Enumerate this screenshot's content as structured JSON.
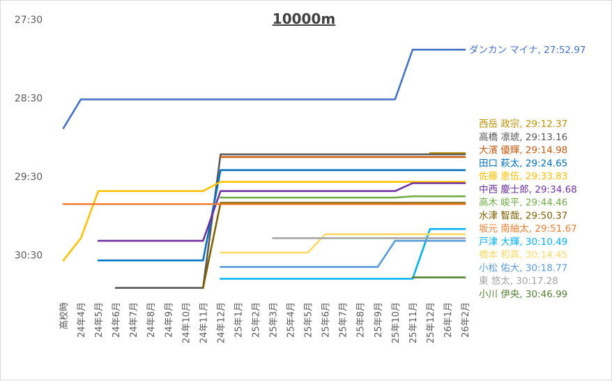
{
  "chart_data": {
    "type": "line",
    "title": "10000m",
    "xlabel": "",
    "ylabel": "",
    "y_axis_reversed": true,
    "y_unit": "seconds",
    "ylim": [
      1650,
      1860
    ],
    "ytick_values": [
      1650,
      1710,
      1770,
      1830
    ],
    "ytick_labels": [
      "27:30",
      "28:30",
      "29:30",
      "30:30"
    ],
    "categories": [
      "高校時",
      "24年4月",
      "24年5月",
      "24年6月",
      "24年7月",
      "24年8月",
      "24年9月",
      "24年10月",
      "24年11月",
      "24年12月",
      "25年1月",
      "25年2月",
      "25年3月",
      "25年4月",
      "25年5月",
      "25年6月",
      "25年7月",
      "25年8月",
      "25年9月",
      "25年10月",
      "25年11月",
      "25年12月",
      "26年1月",
      "26年2月"
    ],
    "series": [
      {
        "name": "ダンカン マイナ",
        "label": "ダンカン マイナ, 27:52.97",
        "color": "#4472c4",
        "values": [
          1733,
          1711,
          1711,
          1711,
          1711,
          1711,
          1711,
          1711,
          1711,
          1711,
          1711,
          1711,
          1711,
          1711,
          1711,
          1711,
          1711,
          1711,
          1711,
          1711,
          1673,
          1673,
          1673,
          1673
        ]
      },
      {
        "name": "西岳 政宗",
        "label": "西岳 政宗, 29:12.37",
        "color": "#bf9000",
        "values": [
          null,
          null,
          null,
          null,
          null,
          null,
          null,
          null,
          null,
          null,
          null,
          null,
          null,
          null,
          null,
          null,
          null,
          null,
          null,
          null,
          null,
          1752,
          1752,
          1752
        ]
      },
      {
        "name": "高橋 凛琥",
        "label": "高橋 凛琥, 29:13.16",
        "color": "#595959",
        "values": [
          null,
          null,
          null,
          1855,
          1855,
          1855,
          1855,
          1855,
          1855,
          1753,
          1753,
          1753,
          1753,
          1753,
          1753,
          1753,
          1753,
          1753,
          1753,
          1753,
          1753,
          1753,
          1753,
          1753
        ]
      },
      {
        "name": "大濱 優輝",
        "label": "大濱 優輝, 29:14.98",
        "color": "#c55a11",
        "values": [
          null,
          null,
          null,
          null,
          null,
          null,
          null,
          null,
          null,
          1755,
          1755,
          1755,
          1755,
          1755,
          1755,
          1755,
          1755,
          1755,
          1755,
          1755,
          1755,
          1755,
          1755,
          1755
        ]
      },
      {
        "name": "田口 萩太",
        "label": "田口 萩太, 29:24.65",
        "color": "#0070c0",
        "values": [
          null,
          null,
          1834,
          1834,
          1834,
          1834,
          1834,
          1834,
          1834,
          1765,
          1765,
          1765,
          1765,
          1765,
          1765,
          1765,
          1765,
          1765,
          1765,
          1765,
          1765,
          1765,
          1765,
          1765
        ]
      },
      {
        "name": "佐藤 恵伍",
        "label": "佐藤 恵伍, 29:33.83",
        "color": "#ffc000",
        "values": [
          1834,
          1817,
          1781,
          1781,
          1781,
          1781,
          1781,
          1781,
          1781,
          1774,
          1774,
          1774,
          1774,
          1774,
          1774,
          1774,
          1774,
          1774,
          1774,
          1774,
          1774,
          1774,
          1774,
          1774
        ]
      },
      {
        "name": "中西 慶士郎",
        "label": "中西 慶士郎, 29:34.68",
        "color": "#7030a0",
        "values": [
          null,
          null,
          1819,
          1819,
          1819,
          1819,
          1819,
          1819,
          1819,
          1781,
          1781,
          1781,
          1781,
          1781,
          1781,
          1781,
          1781,
          1781,
          1781,
          1781,
          1775,
          1775,
          1775,
          1775
        ]
      },
      {
        "name": "高木 峻平",
        "label": "高木 峻平, 29:44.46",
        "color": "#70ad47",
        "values": [
          null,
          null,
          null,
          null,
          null,
          null,
          null,
          null,
          null,
          1786,
          1786,
          1786,
          1786,
          1786,
          1786,
          1786,
          1786,
          1786,
          1786,
          1786,
          1785,
          1785,
          1785,
          1785
        ]
      },
      {
        "name": "水津 智哉",
        "label": "水津 智哉, 29:50.37",
        "color": "#7f6000",
        "values": [
          null,
          null,
          null,
          null,
          null,
          null,
          null,
          null,
          1855,
          1790,
          1790,
          1790,
          1790,
          1790,
          1790,
          1790,
          1790,
          1790,
          1790,
          1790,
          1790,
          1790,
          1790,
          1790
        ]
      },
      {
        "name": "坂元 南紬太",
        "label": "坂元 南紬太, 29:51.67",
        "color": "#ed7d31",
        "values": [
          1791,
          1791,
          1791,
          1791,
          1791,
          1791,
          1791,
          1791,
          1791,
          1791,
          1791,
          1791,
          1791,
          1791,
          1791,
          1791,
          1791,
          1791,
          1791,
          1791,
          1791,
          1791,
          1791,
          1791
        ]
      },
      {
        "name": "戸津 大輝",
        "label": "戸津 大輝, 30:10.49",
        "color": "#00b0f0",
        "values": [
          null,
          null,
          null,
          null,
          null,
          null,
          null,
          null,
          null,
          1848,
          1848,
          1848,
          1848,
          1848,
          1848,
          1848,
          1848,
          1848,
          1848,
          1848,
          1848,
          1810,
          1810,
          1810
        ]
      },
      {
        "name": "橋本 和真",
        "label": "橋本 和真, 30:14.45",
        "color": "#ffd966",
        "values": [
          null,
          null,
          null,
          null,
          null,
          null,
          null,
          null,
          null,
          1828,
          1828,
          1828,
          1828,
          1828,
          1828,
          1814,
          1814,
          1814,
          1814,
          1814,
          1814,
          1814,
          1814,
          1814
        ]
      },
      {
        "name": "小松 佑大",
        "label": "小松 佑大, 30:18.77",
        "color": "#5b9bd5",
        "values": [
          null,
          null,
          null,
          null,
          null,
          null,
          null,
          null,
          null,
          1839,
          1839,
          1839,
          1839,
          1839,
          1839,
          1839,
          1839,
          1839,
          1839,
          1819,
          1819,
          1819,
          1819,
          1819
        ]
      },
      {
        "name": "東 悠太",
        "label": "東 悠太, 30:17.28",
        "color": "#a5a5a5",
        "values": [
          null,
          null,
          null,
          null,
          null,
          null,
          null,
          null,
          null,
          null,
          null,
          null,
          1817,
          1817,
          1817,
          1817,
          1817,
          1817,
          1817,
          1817,
          1817,
          1817,
          1817,
          1817
        ]
      },
      {
        "name": "小川 伊央",
        "label": "小川 伊央, 30:46.99",
        "color": "#548235",
        "values": [
          null,
          null,
          null,
          null,
          null,
          null,
          null,
          null,
          null,
          null,
          null,
          null,
          null,
          null,
          null,
          null,
          null,
          null,
          null,
          null,
          1847,
          1847,
          1847,
          1847
        ]
      }
    ],
    "grid": false,
    "legend": "data labels at right end of each line"
  }
}
